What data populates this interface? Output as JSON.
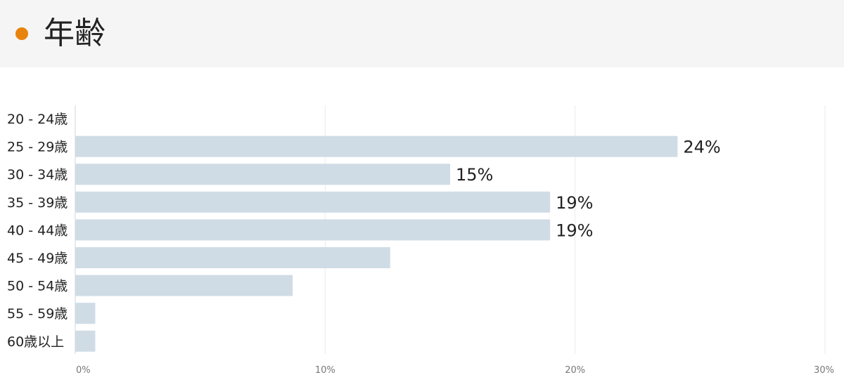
{
  "header": {
    "title": "年齢",
    "dot_color": "#e8830c"
  },
  "chart_data": {
    "type": "bar",
    "orientation": "horizontal",
    "categories": [
      "20 - 24歳",
      "25 - 29歳",
      "30 - 34歳",
      "35 - 39歳",
      "40 - 44歳",
      "45 - 49歳",
      "50 - 54歳",
      "55 - 59歳",
      "60歳以上"
    ],
    "values": [
      0,
      24.1,
      15.0,
      19.0,
      19.0,
      12.6,
      8.7,
      0.8,
      0.8
    ],
    "data_labels": [
      "",
      "24%",
      "15%",
      "19%",
      "19%",
      "",
      "",
      "",
      ""
    ],
    "xlim": [
      0,
      30
    ],
    "ticks": [
      0,
      10,
      20,
      30
    ],
    "tick_labels": [
      "0%",
      "10%",
      "20%",
      "30%"
    ],
    "grid": true,
    "bar_color": "#cfdce6"
  }
}
